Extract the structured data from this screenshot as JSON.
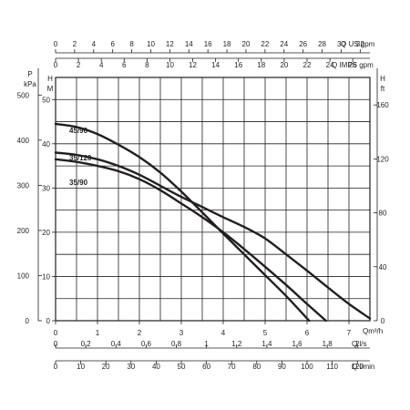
{
  "chart_data": {
    "type": "line",
    "colors": {
      "ink": "#231f20",
      "background": "#ffffff"
    },
    "grid": true,
    "x_axis": {
      "label": "Qm³/h",
      "range": [
        0,
        7.5
      ],
      "ticks": [
        "0",
        "1",
        "2",
        "3",
        "4",
        "5",
        "6",
        "7"
      ]
    },
    "y_axis": {
      "label": "H M",
      "range": [
        0,
        55
      ],
      "ticks": [
        "0",
        "10",
        "20",
        "30",
        "40",
        "50"
      ]
    },
    "secondary_x_axes": [
      {
        "label": "Q l/s",
        "range": [
          0,
          2.083
        ],
        "ticks": [
          "0",
          "0,2",
          "0,4",
          "0,6",
          "0,8",
          "1",
          "1,2",
          "1,4",
          "1,6",
          "1,8",
          "2"
        ]
      },
      {
        "label": "Q l/min",
        "range": [
          0,
          125
        ],
        "ticks": [
          "0",
          "10",
          "20",
          "30",
          "40",
          "50",
          "60",
          "70",
          "80",
          "90",
          "100",
          "110",
          "120"
        ]
      },
      {
        "label": "Q US gpm",
        "range": [
          0,
          33.02
        ],
        "ticks": [
          "0",
          "2",
          "4",
          "6",
          "8",
          "10",
          "12",
          "14",
          "16",
          "18",
          "20",
          "22",
          "24",
          "26",
          "28",
          "30",
          "32"
        ]
      },
      {
        "label": "Q IMPS gpm",
        "range": [
          0,
          27.5
        ],
        "ticks": [
          "0",
          "2",
          "4",
          "6",
          "8",
          "10",
          "12",
          "14",
          "16",
          "18",
          "20",
          "22",
          "24",
          "26"
        ]
      }
    ],
    "secondary_y_axes": [
      {
        "label": "P kPa",
        "range": [
          0,
          539
        ],
        "ticks": [
          "0",
          "100",
          "200",
          "300",
          "400",
          "500"
        ]
      },
      {
        "label": "H ft",
        "range": [
          0,
          180.4
        ],
        "ticks": [
          "0",
          "40",
          "80",
          "120",
          "160"
        ]
      }
    ],
    "series": [
      {
        "name": "45/90",
        "x": [
          0,
          0.5,
          1,
          1.5,
          2,
          2.5,
          3,
          3.5,
          4,
          4.5,
          5,
          5.5,
          6.05
        ],
        "y": [
          44.5,
          43.8,
          42.2,
          39.8,
          37,
          33.5,
          29.2,
          24.5,
          19.7,
          15,
          10.3,
          5.6,
          0
        ]
      },
      {
        "name": "35/120",
        "x": [
          0,
          0.5,
          1,
          1.5,
          2,
          2.5,
          3,
          3.5,
          4,
          4.5,
          5,
          5.5,
          6,
          6.5,
          7,
          7.5
        ],
        "y": [
          38,
          37.5,
          36.5,
          35,
          33,
          30.5,
          28,
          25.7,
          23.4,
          21.2,
          18.6,
          15,
          11.3,
          7.5,
          3.8,
          0.5
        ]
      },
      {
        "name": "35/90",
        "x": [
          0,
          0.5,
          1,
          1.5,
          2,
          2.5,
          3,
          3.5,
          4,
          4.5,
          5,
          5.5,
          6,
          6.45
        ],
        "y": [
          36.5,
          35.9,
          35,
          33.8,
          32,
          29.5,
          26.5,
          23.4,
          20,
          16.2,
          12.2,
          8.1,
          3.8,
          0
        ]
      }
    ]
  }
}
